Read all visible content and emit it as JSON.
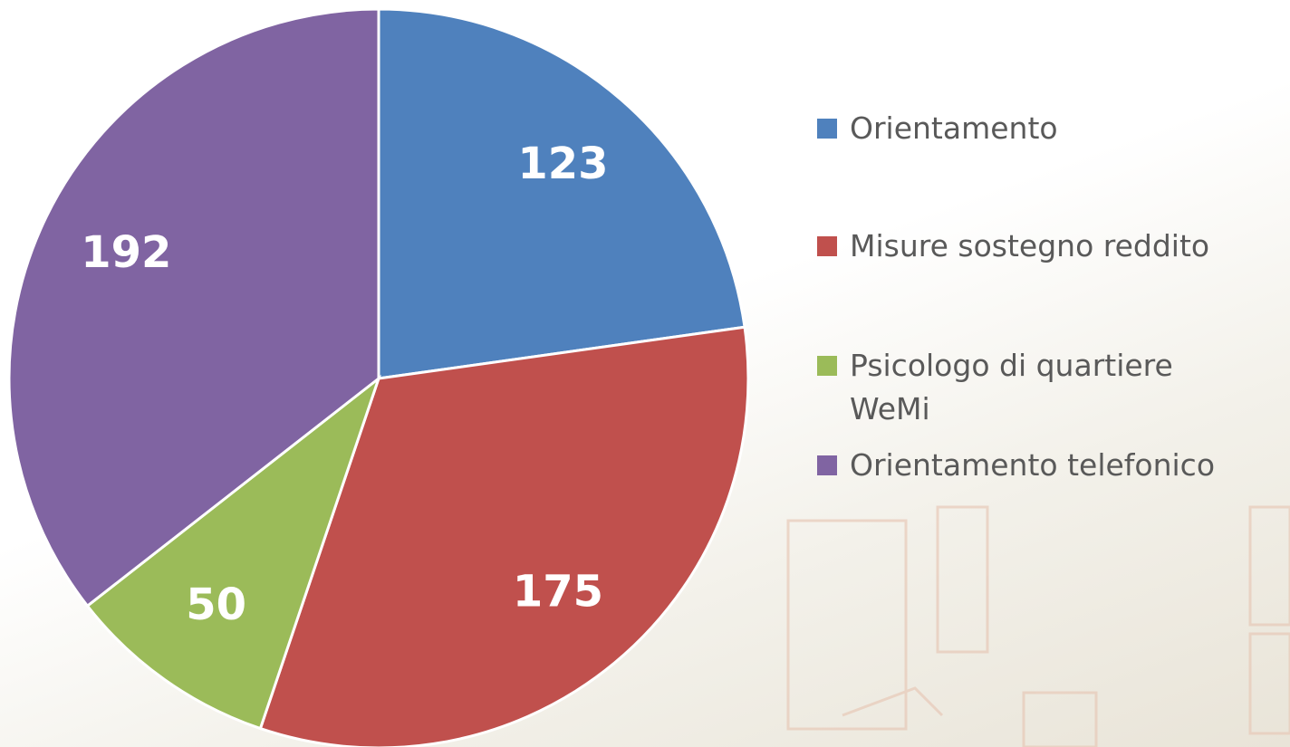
{
  "chart_data": {
    "type": "pie",
    "categories": [
      "Orientamento",
      "Misure sostegno reddito",
      "Psicologo di quartiere WeMi",
      "Orientamento telefonico"
    ],
    "values": [
      123,
      175,
      50,
      192
    ],
    "colors": [
      "#4f81bd",
      "#c0504d",
      "#9bbb59",
      "#8064a2"
    ],
    "legend": "right"
  }
}
